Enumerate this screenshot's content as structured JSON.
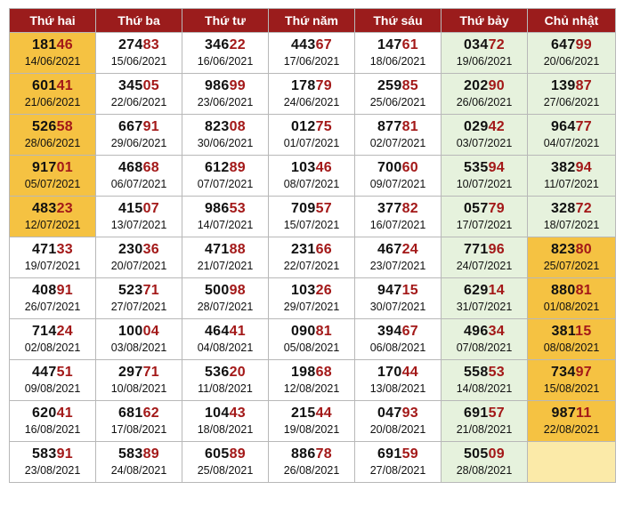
{
  "columns": [
    "Thứ hai",
    "Thứ ba",
    "Thứ tư",
    "Thứ năm",
    "Thứ sáu",
    "Thứ bảy",
    "Chủ nhật"
  ],
  "colors": {
    "header": "#9b1c1c",
    "tail_digits": "#a31818",
    "green_cell": "#e6f2dd",
    "highlight_cell": "#f5c242",
    "empty_cell": "#fbeaa8"
  },
  "rows": [
    [
      {
        "head": "181",
        "tail": "46",
        "date": "14/06/2021",
        "style": "orange"
      },
      {
        "head": "274",
        "tail": "83",
        "date": "15/06/2021",
        "style": ""
      },
      {
        "head": "346",
        "tail": "22",
        "date": "16/06/2021",
        "style": ""
      },
      {
        "head": "443",
        "tail": "67",
        "date": "17/06/2021",
        "style": ""
      },
      {
        "head": "147",
        "tail": "61",
        "date": "18/06/2021",
        "style": ""
      },
      {
        "head": "034",
        "tail": "72",
        "date": "19/06/2021",
        "style": "green"
      },
      {
        "head": "647",
        "tail": "99",
        "date": "20/06/2021",
        "style": "green"
      }
    ],
    [
      {
        "head": "601",
        "tail": "41",
        "date": "21/06/2021",
        "style": "orange"
      },
      {
        "head": "345",
        "tail": "05",
        "date": "22/06/2021",
        "style": ""
      },
      {
        "head": "986",
        "tail": "99",
        "date": "23/06/2021",
        "style": ""
      },
      {
        "head": "178",
        "tail": "79",
        "date": "24/06/2021",
        "style": ""
      },
      {
        "head": "259",
        "tail": "85",
        "date": "25/06/2021",
        "style": ""
      },
      {
        "head": "202",
        "tail": "90",
        "date": "26/06/2021",
        "style": "green"
      },
      {
        "head": "139",
        "tail": "87",
        "date": "27/06/2021",
        "style": "green"
      }
    ],
    [
      {
        "head": "526",
        "tail": "58",
        "date": "28/06/2021",
        "style": "orange"
      },
      {
        "head": "667",
        "tail": "91",
        "date": "29/06/2021",
        "style": ""
      },
      {
        "head": "823",
        "tail": "08",
        "date": "30/06/2021",
        "style": ""
      },
      {
        "head": "012",
        "tail": "75",
        "date": "01/07/2021",
        "style": ""
      },
      {
        "head": "877",
        "tail": "81",
        "date": "02/07/2021",
        "style": ""
      },
      {
        "head": "029",
        "tail": "42",
        "date": "03/07/2021",
        "style": "green"
      },
      {
        "head": "964",
        "tail": "77",
        "date": "04/07/2021",
        "style": "green"
      }
    ],
    [
      {
        "head": "917",
        "tail": "01",
        "date": "05/07/2021",
        "style": "orange"
      },
      {
        "head": "468",
        "tail": "68",
        "date": "06/07/2021",
        "style": ""
      },
      {
        "head": "612",
        "tail": "89",
        "date": "07/07/2021",
        "style": ""
      },
      {
        "head": "103",
        "tail": "46",
        "date": "08/07/2021",
        "style": ""
      },
      {
        "head": "700",
        "tail": "60",
        "date": "09/07/2021",
        "style": ""
      },
      {
        "head": "535",
        "tail": "94",
        "date": "10/07/2021",
        "style": "green"
      },
      {
        "head": "382",
        "tail": "94",
        "date": "11/07/2021",
        "style": "green"
      }
    ],
    [
      {
        "head": "483",
        "tail": "23",
        "date": "12/07/2021",
        "style": "orange"
      },
      {
        "head": "415",
        "tail": "07",
        "date": "13/07/2021",
        "style": ""
      },
      {
        "head": "986",
        "tail": "53",
        "date": "14/07/2021",
        "style": ""
      },
      {
        "head": "709",
        "tail": "57",
        "date": "15/07/2021",
        "style": ""
      },
      {
        "head": "377",
        "tail": "82",
        "date": "16/07/2021",
        "style": ""
      },
      {
        "head": "057",
        "tail": "79",
        "date": "17/07/2021",
        "style": "green"
      },
      {
        "head": "328",
        "tail": "72",
        "date": "18/07/2021",
        "style": "green"
      }
    ],
    [
      {
        "head": "471",
        "tail": "33",
        "date": "19/07/2021",
        "style": ""
      },
      {
        "head": "230",
        "tail": "36",
        "date": "20/07/2021",
        "style": ""
      },
      {
        "head": "471",
        "tail": "88",
        "date": "21/07/2021",
        "style": ""
      },
      {
        "head": "231",
        "tail": "66",
        "date": "22/07/2021",
        "style": ""
      },
      {
        "head": "467",
        "tail": "24",
        "date": "23/07/2021",
        "style": ""
      },
      {
        "head": "771",
        "tail": "96",
        "date": "24/07/2021",
        "style": "green"
      },
      {
        "head": "823",
        "tail": "80",
        "date": "25/07/2021",
        "style": "orange"
      }
    ],
    [
      {
        "head": "408",
        "tail": "91",
        "date": "26/07/2021",
        "style": ""
      },
      {
        "head": "523",
        "tail": "71",
        "date": "27/07/2021",
        "style": ""
      },
      {
        "head": "500",
        "tail": "98",
        "date": "28/07/2021",
        "style": ""
      },
      {
        "head": "103",
        "tail": "26",
        "date": "29/07/2021",
        "style": ""
      },
      {
        "head": "947",
        "tail": "15",
        "date": "30/07/2021",
        "style": ""
      },
      {
        "head": "629",
        "tail": "14",
        "date": "31/07/2021",
        "style": "green"
      },
      {
        "head": "880",
        "tail": "81",
        "date": "01/08/2021",
        "style": "orange"
      }
    ],
    [
      {
        "head": "714",
        "tail": "24",
        "date": "02/08/2021",
        "style": ""
      },
      {
        "head": "100",
        "tail": "04",
        "date": "03/08/2021",
        "style": ""
      },
      {
        "head": "464",
        "tail": "41",
        "date": "04/08/2021",
        "style": ""
      },
      {
        "head": "090",
        "tail": "81",
        "date": "05/08/2021",
        "style": ""
      },
      {
        "head": "394",
        "tail": "67",
        "date": "06/08/2021",
        "style": ""
      },
      {
        "head": "496",
        "tail": "34",
        "date": "07/08/2021",
        "style": "green"
      },
      {
        "head": "381",
        "tail": "15",
        "date": "08/08/2021",
        "style": "orange"
      }
    ],
    [
      {
        "head": "447",
        "tail": "51",
        "date": "09/08/2021",
        "style": ""
      },
      {
        "head": "297",
        "tail": "71",
        "date": "10/08/2021",
        "style": ""
      },
      {
        "head": "536",
        "tail": "20",
        "date": "11/08/2021",
        "style": ""
      },
      {
        "head": "198",
        "tail": "68",
        "date": "12/08/2021",
        "style": ""
      },
      {
        "head": "170",
        "tail": "44",
        "date": "13/08/2021",
        "style": ""
      },
      {
        "head": "558",
        "tail": "53",
        "date": "14/08/2021",
        "style": "green"
      },
      {
        "head": "734",
        "tail": "97",
        "date": "15/08/2021",
        "style": "orange"
      }
    ],
    [
      {
        "head": "620",
        "tail": "41",
        "date": "16/08/2021",
        "style": ""
      },
      {
        "head": "681",
        "tail": "62",
        "date": "17/08/2021",
        "style": ""
      },
      {
        "head": "104",
        "tail": "43",
        "date": "18/08/2021",
        "style": ""
      },
      {
        "head": "215",
        "tail": "44",
        "date": "19/08/2021",
        "style": ""
      },
      {
        "head": "047",
        "tail": "93",
        "date": "20/08/2021",
        "style": ""
      },
      {
        "head": "691",
        "tail": "57",
        "date": "21/08/2021",
        "style": "green"
      },
      {
        "head": "987",
        "tail": "11",
        "date": "22/08/2021",
        "style": "orange"
      }
    ],
    [
      {
        "head": "583",
        "tail": "91",
        "date": "23/08/2021",
        "style": ""
      },
      {
        "head": "583",
        "tail": "89",
        "date": "24/08/2021",
        "style": ""
      },
      {
        "head": "605",
        "tail": "89",
        "date": "25/08/2021",
        "style": ""
      },
      {
        "head": "886",
        "tail": "78",
        "date": "26/08/2021",
        "style": ""
      },
      {
        "head": "691",
        "tail": "59",
        "date": "27/08/2021",
        "style": ""
      },
      {
        "head": "505",
        "tail": "09",
        "date": "28/08/2021",
        "style": "green"
      },
      {
        "head": "",
        "tail": "",
        "date": "",
        "style": "pale"
      }
    ]
  ]
}
